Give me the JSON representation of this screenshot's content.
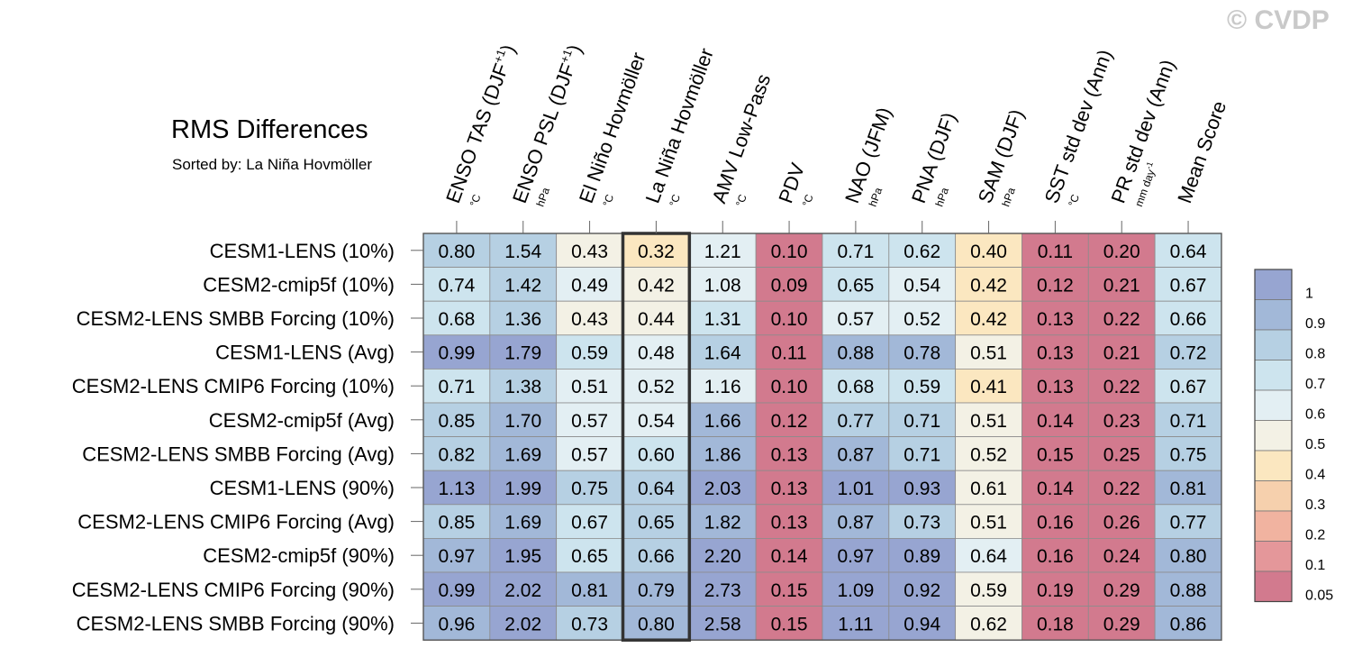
{
  "watermark": "© CVDP",
  "chart_data": {
    "type": "heatmap",
    "title": "RMS Differences",
    "subtitle": "Sorted by: La Niña Hovmöller",
    "highlight_column": "La Niña Hovmöller",
    "columns": [
      {
        "label": "ENSO TAS (DJF+1)",
        "base": "ENSO TAS (DJF",
        "sup": "+1",
        "close": ")",
        "unit": "°C",
        "unit_sup": ""
      },
      {
        "label": "ENSO PSL (DJF+1)",
        "base": "ENSO PSL (DJF",
        "sup": "+1",
        "close": ")",
        "unit": "hPa",
        "unit_sup": ""
      },
      {
        "label": "El Niño Hovmöller",
        "base": "El Niño Hovmöller",
        "sup": "",
        "close": "",
        "unit": "°C",
        "unit_sup": ""
      },
      {
        "label": "La Niña Hovmöller",
        "base": "La Niña Hovmöller",
        "sup": "",
        "close": "",
        "unit": "°C",
        "unit_sup": ""
      },
      {
        "label": "AMV Low-Pass",
        "base": "AMV Low-Pass",
        "sup": "",
        "close": "",
        "unit": "°C",
        "unit_sup": ""
      },
      {
        "label": "PDV",
        "base": "PDV",
        "sup": "",
        "close": "",
        "unit": "°C",
        "unit_sup": ""
      },
      {
        "label": "NAO (JFM)",
        "base": "NAO (JFM)",
        "sup": "",
        "close": "",
        "unit": "hPa",
        "unit_sup": ""
      },
      {
        "label": "PNA (DJF)",
        "base": "PNA (DJF)",
        "sup": "",
        "close": "",
        "unit": "hPa",
        "unit_sup": ""
      },
      {
        "label": "SAM (DJF)",
        "base": "SAM (DJF)",
        "sup": "",
        "close": "",
        "unit": "hPa",
        "unit_sup": ""
      },
      {
        "label": "SST std dev (Ann)",
        "base": "SST std dev (Ann)",
        "sup": "",
        "close": "",
        "unit": "°C",
        "unit_sup": ""
      },
      {
        "label": "PR std dev (Ann)",
        "base": "PR std dev (Ann)",
        "sup": "",
        "close": "",
        "unit": "mm day",
        "unit_sup": "-1"
      },
      {
        "label": "Mean Score",
        "base": "Mean Score",
        "sup": "",
        "close": "",
        "unit": "",
        "unit_sup": ""
      }
    ],
    "rows": [
      {
        "name": "CESM1-LENS (10%)",
        "values": [
          0.8,
          1.54,
          0.43,
          0.32,
          1.21,
          0.1,
          0.71,
          0.62,
          0.4,
          0.11,
          0.2,
          0.64
        ]
      },
      {
        "name": "CESM2-cmip5f (10%)",
        "values": [
          0.74,
          1.42,
          0.49,
          0.42,
          1.08,
          0.09,
          0.65,
          0.54,
          0.42,
          0.12,
          0.21,
          0.67
        ]
      },
      {
        "name": "CESM2-LENS SMBB Forcing (10%)",
        "values": [
          0.68,
          1.36,
          0.43,
          0.44,
          1.31,
          0.1,
          0.57,
          0.52,
          0.42,
          0.13,
          0.22,
          0.66
        ]
      },
      {
        "name": "CESM1-LENS (Avg)",
        "values": [
          0.99,
          1.79,
          0.59,
          0.48,
          1.64,
          0.11,
          0.88,
          0.78,
          0.51,
          0.13,
          0.21,
          0.72
        ]
      },
      {
        "name": "CESM2-LENS CMIP6 Forcing (10%)",
        "values": [
          0.71,
          1.38,
          0.51,
          0.52,
          1.16,
          0.1,
          0.68,
          0.59,
          0.41,
          0.13,
          0.22,
          0.67
        ]
      },
      {
        "name": "CESM2-cmip5f (Avg)",
        "values": [
          0.85,
          1.7,
          0.57,
          0.54,
          1.66,
          0.12,
          0.77,
          0.71,
          0.51,
          0.14,
          0.23,
          0.71
        ]
      },
      {
        "name": "CESM2-LENS SMBB Forcing (Avg)",
        "values": [
          0.82,
          1.69,
          0.57,
          0.6,
          1.86,
          0.13,
          0.87,
          0.71,
          0.52,
          0.15,
          0.25,
          0.75
        ]
      },
      {
        "name": "CESM1-LENS (90%)",
        "values": [
          1.13,
          1.99,
          0.75,
          0.64,
          2.03,
          0.13,
          1.01,
          0.93,
          0.61,
          0.14,
          0.22,
          0.81
        ]
      },
      {
        "name": "CESM2-LENS CMIP6 Forcing (Avg)",
        "values": [
          0.85,
          1.69,
          0.67,
          0.65,
          1.82,
          0.13,
          0.87,
          0.73,
          0.51,
          0.16,
          0.26,
          0.77
        ]
      },
      {
        "name": "CESM2-cmip5f (90%)",
        "values": [
          0.97,
          1.95,
          0.65,
          0.66,
          2.2,
          0.14,
          0.97,
          0.89,
          0.64,
          0.16,
          0.24,
          0.8
        ]
      },
      {
        "name": "CESM2-LENS CMIP6 Forcing (90%)",
        "values": [
          0.99,
          2.02,
          0.81,
          0.79,
          2.73,
          0.15,
          1.09,
          0.92,
          0.59,
          0.19,
          0.29,
          0.88
        ]
      },
      {
        "name": "CESM2-LENS SMBB Forcing (90%)",
        "values": [
          0.96,
          2.02,
          0.73,
          0.8,
          2.58,
          0.15,
          1.11,
          0.94,
          0.62,
          0.18,
          0.29,
          0.86
        ]
      }
    ],
    "colorbar": {
      "bounds": [
        0.05,
        0.1,
        0.2,
        0.3,
        0.4,
        0.5,
        0.6,
        0.7,
        0.8,
        0.9,
        1
      ],
      "tick_labels": [
        "1",
        "0.9",
        "0.8",
        "0.7",
        "0.6",
        "0.5",
        "0.4",
        "0.3",
        "0.2",
        "0.1",
        "0.05"
      ],
      "colors_low_to_high": [
        "#d27a8e",
        "#e4979a",
        "#f1b3a0",
        "#f6d0ad",
        "#fbe7c0",
        "#f3f1e5",
        "#e3eff3",
        "#cde4ee",
        "#b6d0e3",
        "#a2b8d8",
        "#97a5d1"
      ]
    }
  }
}
